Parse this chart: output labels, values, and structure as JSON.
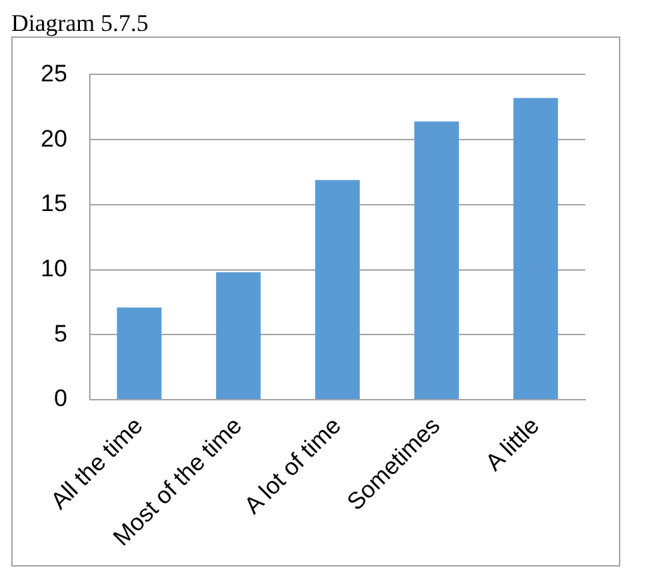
{
  "chart_data": {
    "type": "bar",
    "title": "Diagram 5.7.5",
    "categories": [
      "All the time",
      "Most of the time",
      "A lot of time",
      "Sometimes",
      "A little"
    ],
    "values": [
      7.1,
      9.8,
      16.9,
      21.4,
      23.2
    ],
    "color": "#5b9bd5",
    "ylim": [
      0,
      25
    ],
    "yticks": [
      0,
      5,
      10,
      15,
      20,
      25
    ],
    "grid": "y",
    "legend": false
  }
}
